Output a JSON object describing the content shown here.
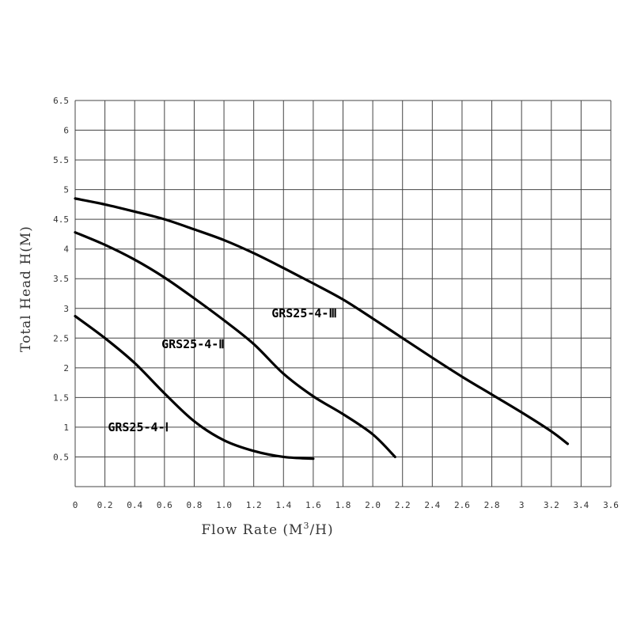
{
  "chart_data": {
    "type": "line",
    "xlabel": "Flow Rate (M",
    "xlabel_sup": "3",
    "xlabel_tail": "/H)",
    "ylabel": "Total Head H(M)",
    "xlim": [
      0,
      3.6
    ],
    "ylim": [
      0,
      6.5
    ],
    "x_ticks": [
      "0",
      "0.2",
      "0.4",
      "0.6",
      "0.8",
      "1.0",
      "1.2",
      "1.4",
      "1.6",
      "1.8",
      "2.0",
      "2.2",
      "2.4",
      "2.6",
      "2.8",
      "3",
      "3.2",
      "3.4",
      "3.6"
    ],
    "y_ticks": [
      "0.5",
      "1",
      "1.5",
      "2",
      "2.5",
      "3",
      "3.5",
      "4",
      "4.5",
      "5",
      "5.5",
      "6",
      "6.5"
    ],
    "grid": true,
    "series": [
      {
        "name": "GRS25-4-Ⅰ",
        "points": [
          [
            0,
            2.87
          ],
          [
            0.2,
            2.5
          ],
          [
            0.4,
            2.08
          ],
          [
            0.6,
            1.57
          ],
          [
            0.8,
            1.1
          ],
          [
            1.0,
            0.78
          ],
          [
            1.2,
            0.6
          ],
          [
            1.4,
            0.5
          ],
          [
            1.6,
            0.47
          ]
        ]
      },
      {
        "name": "GRS25-4-Ⅱ",
        "points": [
          [
            0,
            4.28
          ],
          [
            0.2,
            4.07
          ],
          [
            0.4,
            3.82
          ],
          [
            0.6,
            3.52
          ],
          [
            0.8,
            3.17
          ],
          [
            1.0,
            2.8
          ],
          [
            1.2,
            2.4
          ],
          [
            1.4,
            1.9
          ],
          [
            1.6,
            1.52
          ],
          [
            1.8,
            1.22
          ],
          [
            2.0,
            0.88
          ],
          [
            2.15,
            0.5
          ]
        ]
      },
      {
        "name": "GRS25-4-Ⅲ",
        "points": [
          [
            0,
            4.85
          ],
          [
            0.2,
            4.75
          ],
          [
            0.4,
            4.63
          ],
          [
            0.6,
            4.5
          ],
          [
            0.8,
            4.33
          ],
          [
            1.0,
            4.15
          ],
          [
            1.2,
            3.93
          ],
          [
            1.4,
            3.68
          ],
          [
            1.6,
            3.42
          ],
          [
            1.8,
            3.15
          ],
          [
            2.0,
            2.83
          ],
          [
            2.2,
            2.5
          ],
          [
            2.4,
            2.17
          ],
          [
            2.6,
            1.85
          ],
          [
            2.8,
            1.55
          ],
          [
            3.0,
            1.25
          ],
          [
            3.2,
            0.93
          ],
          [
            3.31,
            0.72
          ]
        ]
      }
    ]
  }
}
